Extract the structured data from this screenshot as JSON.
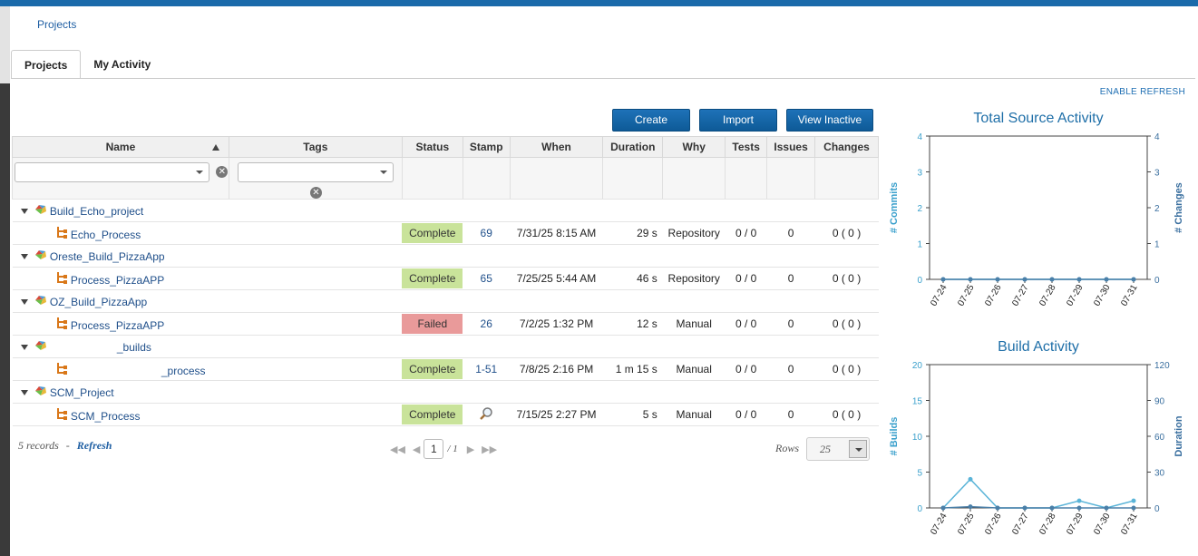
{
  "breadcrumb": "Projects",
  "tabs": [
    {
      "label": "Projects"
    },
    {
      "label": "My Activity"
    }
  ],
  "enable_refresh": "ENABLE REFRESH",
  "buttons": {
    "create": "Create",
    "import": "Import",
    "view_inactive": "View Inactive"
  },
  "columns": [
    "Name",
    "Tags",
    "Status",
    "Stamp",
    "When",
    "Duration",
    "Why",
    "Tests",
    "Issues",
    "Changes"
  ],
  "rows": [
    {
      "project": "Build_Echo_project",
      "process": "Echo_Process",
      "status": "Complete",
      "stamp": "69",
      "when": "7/31/25 8:15 AM",
      "duration": "29 s",
      "why": "Repository",
      "tests": "0 / 0",
      "issues": "0",
      "changes": "0 ( 0 )"
    },
    {
      "project": "Oreste_Build_PizzaApp",
      "process": "Process_PizzaAPP",
      "status": "Complete",
      "stamp": "65",
      "when": "7/25/25 5:44 AM",
      "duration": "46 s",
      "why": "Repository",
      "tests": "0 / 0",
      "issues": "0",
      "changes": "0 ( 0 )"
    },
    {
      "project": "OZ_Build_PizzaApp",
      "process": "Process_PizzaAPP",
      "status": "Failed",
      "stamp": "26",
      "when": "7/2/25 1:32 PM",
      "duration": "12 s",
      "why": "Manual",
      "tests": "0 / 0",
      "issues": "0",
      "changes": "0 ( 0 )"
    },
    {
      "project": "_builds",
      "process": "_process",
      "status": "Complete",
      "stamp": "1-51",
      "when": "7/8/25 2:16 PM",
      "duration": "1 m 15 s",
      "why": "Manual",
      "tests": "0 / 0",
      "issues": "0",
      "changes": "0 ( 0 )"
    },
    {
      "project": "SCM_Project",
      "process": "SCM_Process",
      "status": "Complete",
      "stamp": "",
      "when": "7/15/25 2:27 PM",
      "duration": "5 s",
      "why": "Manual",
      "tests": "0 / 0",
      "issues": "0",
      "changes": "0 ( 0 )"
    }
  ],
  "footer": {
    "records": "5 records",
    "sep": "-",
    "refresh": "Refresh"
  },
  "pager": {
    "page": "1",
    "of": "/ 1",
    "rows_label": "Rows",
    "rows_value": "25"
  },
  "colors": {
    "accent": "#1a6aaa",
    "complete": "#c9e39a",
    "failed": "#e99a9a",
    "chart_line": "#5ab4d8",
    "chart_line2": "#4a7fa8"
  },
  "chart_data": [
    {
      "type": "line",
      "title": "Total Source Activity",
      "categories": [
        "07-24",
        "07-25",
        "07-26",
        "07-27",
        "07-28",
        "07-29",
        "07-30",
        "07-31"
      ],
      "series": [
        {
          "name": "# Commits",
          "axis": "left",
          "values": [
            0,
            0,
            0,
            0,
            0,
            0,
            0,
            0
          ]
        },
        {
          "name": "# Changes",
          "axis": "right",
          "values": [
            0,
            0,
            0,
            0,
            0,
            0,
            0,
            0
          ]
        }
      ],
      "ylabel_left": "# Commits",
      "ylabel_right": "# Changes",
      "ylim_left": [
        0,
        4
      ],
      "ylim_right": [
        0,
        4
      ],
      "yticks_left": [
        0,
        1,
        2,
        3,
        4
      ],
      "yticks_right": [
        0,
        1,
        2,
        3,
        4
      ]
    },
    {
      "type": "line",
      "title": "Build Activity",
      "categories": [
        "07-24",
        "07-25",
        "07-26",
        "07-27",
        "07-28",
        "07-29",
        "07-30",
        "07-31"
      ],
      "series": [
        {
          "name": "# Builds",
          "axis": "left",
          "values": [
            0,
            4,
            0,
            0,
            0,
            1,
            0,
            1
          ]
        },
        {
          "name": "Duration",
          "axis": "right",
          "values": [
            0,
            1,
            0,
            0,
            0,
            0,
            0,
            0
          ]
        }
      ],
      "ylabel_left": "# Builds",
      "ylabel_right": "Duration",
      "ylim_left": [
        0,
        20
      ],
      "ylim_right": [
        0,
        120
      ],
      "yticks_left": [
        0,
        5,
        10,
        15,
        20
      ],
      "yticks_right": [
        0,
        30,
        60,
        90,
        120
      ]
    }
  ]
}
